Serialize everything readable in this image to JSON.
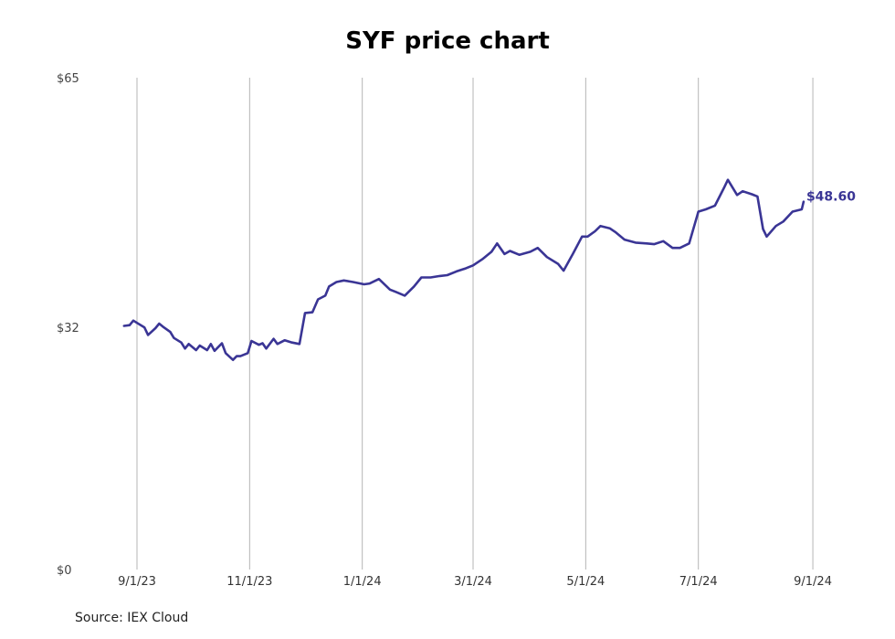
{
  "title": "SYF price chart",
  "source": "Source: IEX Cloud",
  "colors": {
    "line": "#3a3595",
    "grid": "#b5b5b5",
    "text": "#444444"
  },
  "chart_data": {
    "type": "line",
    "title": "SYF price chart",
    "xlabel": "",
    "ylabel": "",
    "ylim": [
      0,
      65
    ],
    "xlim": [
      "2023-08-24",
      "2024-09-01"
    ],
    "y_ticks": [
      {
        "value": 0,
        "label": "$0"
      },
      {
        "value": 32,
        "label": "$32"
      },
      {
        "value": 65,
        "label": "$65"
      }
    ],
    "x_ticks": [
      {
        "date": "2023-09-01",
        "label": "9/1/23"
      },
      {
        "date": "2023-11-01",
        "label": "11/1/23"
      },
      {
        "date": "2024-01-01",
        "label": "1/1/24"
      },
      {
        "date": "2024-03-01",
        "label": "3/1/24"
      },
      {
        "date": "2024-05-01",
        "label": "5/1/24"
      },
      {
        "date": "2024-07-01",
        "label": "7/1/24"
      },
      {
        "date": "2024-09-01",
        "label": "9/1/24"
      }
    ],
    "grid": "vertical",
    "last_value_label": "$48.60",
    "series": [
      {
        "points": [
          [
            "2023-08-25",
            32.2
          ],
          [
            "2023-08-28",
            32.3
          ],
          [
            "2023-08-30",
            32.9
          ],
          [
            "2023-09-01",
            32.6
          ],
          [
            "2023-09-05",
            32.0
          ],
          [
            "2023-09-07",
            31.0
          ],
          [
            "2023-09-11",
            31.9
          ],
          [
            "2023-09-13",
            32.5
          ],
          [
            "2023-09-15",
            32.1
          ],
          [
            "2023-09-19",
            31.4
          ],
          [
            "2023-09-21",
            30.6
          ],
          [
            "2023-09-25",
            30.0
          ],
          [
            "2023-09-27",
            29.2
          ],
          [
            "2023-09-29",
            29.8
          ],
          [
            "2023-10-03",
            29.0
          ],
          [
            "2023-10-05",
            29.6
          ],
          [
            "2023-10-09",
            29.0
          ],
          [
            "2023-10-11",
            29.8
          ],
          [
            "2023-10-13",
            28.9
          ],
          [
            "2023-10-17",
            29.9
          ],
          [
            "2023-10-19",
            28.6
          ],
          [
            "2023-10-23",
            27.7
          ],
          [
            "2023-10-25",
            28.2
          ],
          [
            "2023-10-27",
            28.2
          ],
          [
            "2023-10-31",
            28.6
          ],
          [
            "2023-11-02",
            30.2
          ],
          [
            "2023-11-06",
            29.7
          ],
          [
            "2023-11-08",
            29.9
          ],
          [
            "2023-11-10",
            29.2
          ],
          [
            "2023-11-14",
            30.5
          ],
          [
            "2023-11-16",
            29.8
          ],
          [
            "2023-11-20",
            30.3
          ],
          [
            "2023-11-24",
            30.0
          ],
          [
            "2023-11-28",
            29.8
          ],
          [
            "2023-12-01",
            33.9
          ],
          [
            "2023-12-05",
            34.0
          ],
          [
            "2023-12-08",
            35.7
          ],
          [
            "2023-12-12",
            36.2
          ],
          [
            "2023-12-14",
            37.4
          ],
          [
            "2023-12-18",
            38.0
          ],
          [
            "2023-12-22",
            38.2
          ],
          [
            "2023-12-27",
            38.0
          ],
          [
            "2024-01-02",
            37.7
          ],
          [
            "2024-01-05",
            37.8
          ],
          [
            "2024-01-10",
            38.4
          ],
          [
            "2024-01-16",
            37.0
          ],
          [
            "2024-01-19",
            36.7
          ],
          [
            "2024-01-24",
            36.2
          ],
          [
            "2024-01-29",
            37.4
          ],
          [
            "2024-02-02",
            38.6
          ],
          [
            "2024-02-07",
            38.6
          ],
          [
            "2024-02-12",
            38.8
          ],
          [
            "2024-02-16",
            38.9
          ],
          [
            "2024-02-21",
            39.4
          ],
          [
            "2024-02-26",
            39.8
          ],
          [
            "2024-03-01",
            40.2
          ],
          [
            "2024-03-06",
            41.0
          ],
          [
            "2024-03-11",
            42.0
          ],
          [
            "2024-03-14",
            43.1
          ],
          [
            "2024-03-18",
            41.7
          ],
          [
            "2024-03-21",
            42.1
          ],
          [
            "2024-03-26",
            41.6
          ],
          [
            "2024-04-01",
            42.0
          ],
          [
            "2024-04-05",
            42.5
          ],
          [
            "2024-04-10",
            41.3
          ],
          [
            "2024-04-16",
            40.4
          ],
          [
            "2024-04-19",
            39.5
          ],
          [
            "2024-04-24",
            41.7
          ],
          [
            "2024-04-29",
            44.0
          ],
          [
            "2024-05-02",
            44.0
          ],
          [
            "2024-05-06",
            44.7
          ],
          [
            "2024-05-09",
            45.4
          ],
          [
            "2024-05-14",
            45.1
          ],
          [
            "2024-05-17",
            44.6
          ],
          [
            "2024-05-22",
            43.6
          ],
          [
            "2024-05-28",
            43.2
          ],
          [
            "2024-06-03",
            43.1
          ],
          [
            "2024-06-07",
            43.0
          ],
          [
            "2024-06-12",
            43.4
          ],
          [
            "2024-06-17",
            42.5
          ],
          [
            "2024-06-21",
            42.5
          ],
          [
            "2024-06-26",
            43.1
          ],
          [
            "2024-07-01",
            47.3
          ],
          [
            "2024-07-05",
            47.6
          ],
          [
            "2024-07-10",
            48.1
          ],
          [
            "2024-07-15",
            50.5
          ],
          [
            "2024-07-17",
            51.5
          ],
          [
            "2024-07-22",
            49.5
          ],
          [
            "2024-07-25",
            50.0
          ],
          [
            "2024-07-30",
            49.6
          ],
          [
            "2024-08-02",
            49.3
          ],
          [
            "2024-08-05",
            45.0
          ],
          [
            "2024-08-07",
            44.0
          ],
          [
            "2024-08-12",
            45.4
          ],
          [
            "2024-08-16",
            46.0
          ],
          [
            "2024-08-21",
            47.3
          ],
          [
            "2024-08-26",
            47.6
          ],
          [
            "2024-08-27",
            48.6
          ]
        ]
      }
    ]
  }
}
